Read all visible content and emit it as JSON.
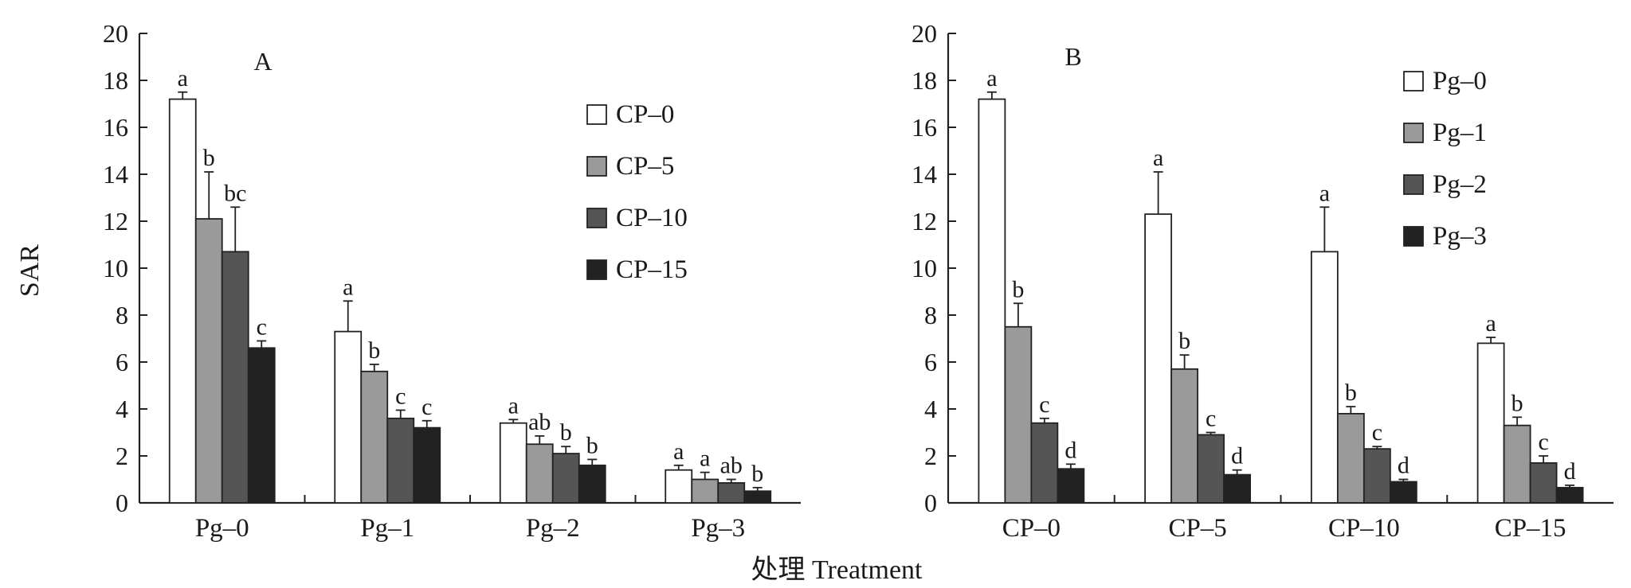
{
  "figure": {
    "ylabel": "SAR",
    "xlabel": "处理 Treatment"
  },
  "chart_data": [
    {
      "type": "bar",
      "panel_label": "A",
      "ylabel": "SAR",
      "xlabel": "处理 Treatment",
      "ylim": [
        0,
        20
      ],
      "yticks": [
        0,
        2,
        4,
        6,
        8,
        10,
        12,
        14,
        16,
        18,
        20
      ],
      "categories": [
        "Pg–0",
        "Pg–1",
        "Pg–2",
        "Pg–3"
      ],
      "legend_position": "top-right",
      "series": [
        {
          "name": "CP–0",
          "color": "#ffffff",
          "values": [
            17.2,
            7.3,
            3.4,
            1.4
          ],
          "errors": [
            0.3,
            1.3,
            0.15,
            0.2
          ],
          "letters": [
            "a",
            "a",
            "a",
            "a"
          ]
        },
        {
          "name": "CP–5",
          "color": "#9a9a9a",
          "values": [
            12.1,
            5.6,
            2.5,
            1.0
          ],
          "errors": [
            2.0,
            0.3,
            0.35,
            0.3
          ],
          "letters": [
            "b",
            "b",
            "ab",
            "a"
          ]
        },
        {
          "name": "CP–10",
          "color": "#555555",
          "values": [
            10.7,
            3.6,
            2.1,
            0.85
          ],
          "errors": [
            1.9,
            0.35,
            0.3,
            0.15
          ],
          "letters": [
            "bc",
            "c",
            "b",
            "ab"
          ]
        },
        {
          "name": "CP–15",
          "color": "#222222",
          "values": [
            6.6,
            3.2,
            1.6,
            0.5
          ],
          "errors": [
            0.3,
            0.3,
            0.25,
            0.15
          ],
          "letters": [
            "c",
            "c",
            "b",
            "b"
          ]
        }
      ]
    },
    {
      "type": "bar",
      "panel_label": "B",
      "ylabel": "",
      "xlabel": "处理 Treatment",
      "ylim": [
        0,
        20
      ],
      "yticks": [
        0,
        2,
        4,
        6,
        8,
        10,
        12,
        14,
        16,
        18,
        20
      ],
      "categories": [
        "CP–0",
        "CP–5",
        "CP–10",
        "CP–15"
      ],
      "legend_position": "top-right",
      "series": [
        {
          "name": "Pg–0",
          "color": "#ffffff",
          "values": [
            17.2,
            12.3,
            10.7,
            6.8
          ],
          "errors": [
            0.3,
            1.8,
            1.9,
            0.25
          ],
          "letters": [
            "a",
            "a",
            "a",
            "a"
          ]
        },
        {
          "name": "Pg–1",
          "color": "#9a9a9a",
          "values": [
            7.5,
            5.7,
            3.8,
            3.3
          ],
          "errors": [
            1.0,
            0.6,
            0.3,
            0.35
          ],
          "letters": [
            "b",
            "b",
            "b",
            "b"
          ]
        },
        {
          "name": "Pg–2",
          "color": "#555555",
          "values": [
            3.4,
            2.9,
            2.3,
            1.7
          ],
          "errors": [
            0.2,
            0.1,
            0.1,
            0.3
          ],
          "letters": [
            "c",
            "c",
            "c",
            "c"
          ]
        },
        {
          "name": "Pg–3",
          "color": "#222222",
          "values": [
            1.45,
            1.2,
            0.9,
            0.65
          ],
          "errors": [
            0.2,
            0.2,
            0.1,
            0.1
          ],
          "letters": [
            "d",
            "d",
            "d",
            "d"
          ]
        }
      ]
    }
  ]
}
